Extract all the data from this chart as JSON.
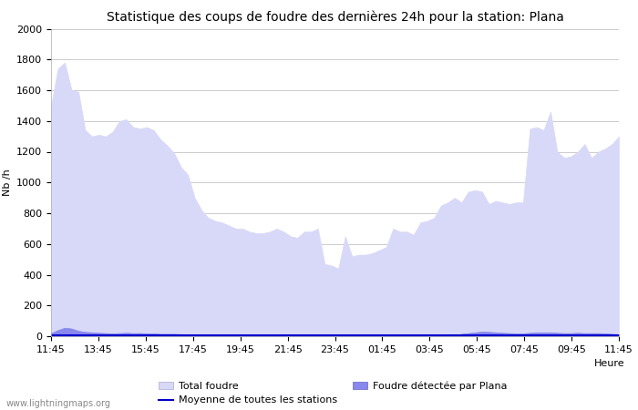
{
  "title": "Statistique des coups de foudre des dernières 24h pour la station: Plana",
  "xlabel": "Heure",
  "ylabel": "Nb /h",
  "xlim_labels": [
    "11:45",
    "13:45",
    "15:45",
    "17:45",
    "19:45",
    "21:45",
    "23:45",
    "01:45",
    "03:45",
    "05:45",
    "07:45",
    "09:45",
    "11:45"
  ],
  "ylim": [
    0,
    2000
  ],
  "yticks": [
    0,
    200,
    400,
    600,
    800,
    1000,
    1200,
    1400,
    1600,
    1800,
    2000
  ],
  "background_color": "#ffffff",
  "plot_bg_color": "#ffffff",
  "grid_color": "#cccccc",
  "total_foudre_color": "#d8d8f8",
  "total_foudre_edge": "#c0c0e8",
  "plana_color": "#8888ee",
  "plana_edge": "#7070dd",
  "mean_line_color": "#0000cc",
  "watermark": "www.lightningmaps.org",
  "total_foudre_values": [
    1500,
    1740,
    1780,
    1600,
    1590,
    1340,
    1300,
    1310,
    1300,
    1330,
    1400,
    1410,
    1360,
    1350,
    1360,
    1340,
    1280,
    1240,
    1190,
    1100,
    1050,
    900,
    820,
    770,
    750,
    740,
    720,
    700,
    700,
    680,
    670,
    670,
    680,
    700,
    680,
    650,
    640,
    680,
    680,
    700,
    470,
    460,
    440,
    650,
    520,
    530,
    530,
    540,
    560,
    580,
    700,
    680,
    680,
    660,
    740,
    750,
    770,
    850,
    870,
    900,
    870,
    940,
    950,
    940,
    860,
    880,
    870,
    860,
    870,
    870,
    1350,
    1360,
    1340,
    1460,
    1200,
    1160,
    1170,
    1200,
    1250,
    1160,
    1200,
    1220,
    1250,
    1300
  ],
  "plana_values": [
    20,
    40,
    55,
    50,
    35,
    28,
    25,
    22,
    20,
    18,
    20,
    22,
    20,
    20,
    18,
    18,
    15,
    15,
    15,
    13,
    12,
    10,
    12,
    12,
    10,
    10,
    8,
    8,
    8,
    8,
    6,
    6,
    6,
    6,
    5,
    5,
    5,
    5,
    5,
    5,
    5,
    5,
    5,
    5,
    5,
    5,
    5,
    5,
    5,
    5,
    5,
    5,
    5,
    5,
    5,
    5,
    5,
    5,
    5,
    5,
    15,
    20,
    25,
    30,
    28,
    25,
    22,
    20,
    18,
    18,
    22,
    25,
    25,
    25,
    22,
    20,
    20,
    22,
    20,
    20,
    20,
    18,
    15,
    12
  ],
  "mean_values": [
    5,
    5,
    5,
    5,
    5,
    5,
    5,
    5,
    5,
    5,
    5,
    5,
    5,
    5,
    5,
    5,
    5,
    5,
    5,
    5,
    5,
    5,
    5,
    5,
    5,
    5,
    5,
    5,
    5,
    5,
    5,
    5,
    5,
    5,
    5,
    5,
    5,
    5,
    5,
    5,
    5,
    5,
    5,
    5,
    5,
    5,
    5,
    5,
    5,
    5,
    5,
    5,
    5,
    5,
    5,
    5,
    5,
    5,
    5,
    5,
    5,
    5,
    5,
    5,
    5,
    5,
    5,
    5,
    5,
    5,
    5,
    5,
    5,
    5,
    5,
    5,
    5,
    5,
    5,
    5,
    5,
    5,
    5,
    5
  ],
  "legend_labels": [
    "Total foudre",
    "Moyenne de toutes les stations",
    "Foudre détectée par Plana"
  ],
  "title_fontsize": 10,
  "axis_fontsize": 8,
  "tick_fontsize": 8,
  "watermark_fontsize": 7
}
